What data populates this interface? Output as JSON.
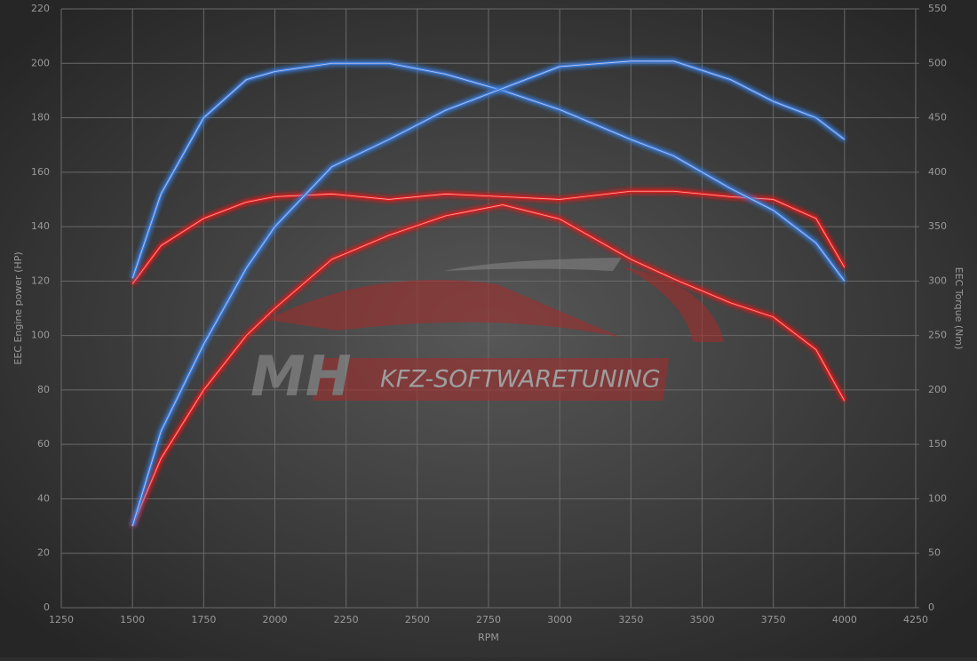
{
  "chart_data": {
    "type": "line",
    "x_label": "RPM",
    "y_label": "EEC Engine power (HP)",
    "y2_label": "EEC Torque (Nm)",
    "watermark": {
      "logo": "MH",
      "text": "KFZ-SOFTWARETUNING"
    },
    "x": [
      1500,
      1600,
      1750,
      1900,
      2000,
      2200,
      2400,
      2600,
      2800,
      3000,
      3250,
      3400,
      3600,
      3750,
      3900,
      4000
    ],
    "series": [
      {
        "color": "#e02020",
        "values": [
          119,
          133,
          143,
          149,
          151,
          152,
          150,
          152,
          151,
          150,
          153,
          153,
          151,
          150,
          143,
          125
        ]
      },
      {
        "color": "#3a7fe0",
        "values": [
          121,
          152,
          180,
          194,
          197,
          200,
          200,
          196,
          190,
          183,
          172,
          166,
          154,
          146,
          134,
          120
        ]
      },
      {
        "color": "#e02020",
        "axis": "y2",
        "values": [
          75,
          137,
          200,
          250,
          275,
          320,
          342,
          360,
          370,
          357,
          320,
          302,
          280,
          267,
          237,
          190
        ]
      },
      {
        "color": "#3a7fe0",
        "axis": "y2",
        "values": [
          75,
          162,
          242,
          312,
          350,
          405,
          430,
          457,
          477,
          497,
          502,
          502,
          485,
          465,
          450,
          430
        ]
      }
    ],
    "xlim": [
      1250,
      4250
    ],
    "xticks": [
      1250,
      1500,
      1750,
      2000,
      2250,
      2500,
      2750,
      3000,
      3250,
      3500,
      3750,
      4000,
      4250
    ],
    "ylim": [
      0,
      220
    ],
    "yticks": [
      0,
      20,
      40,
      60,
      80,
      100,
      120,
      140,
      160,
      180,
      200,
      220
    ],
    "y2lim": [
      0,
      550
    ],
    "y2ticks": [
      0,
      50,
      100,
      150,
      200,
      250,
      300,
      350,
      400,
      450,
      500,
      550
    ],
    "grid": true
  }
}
